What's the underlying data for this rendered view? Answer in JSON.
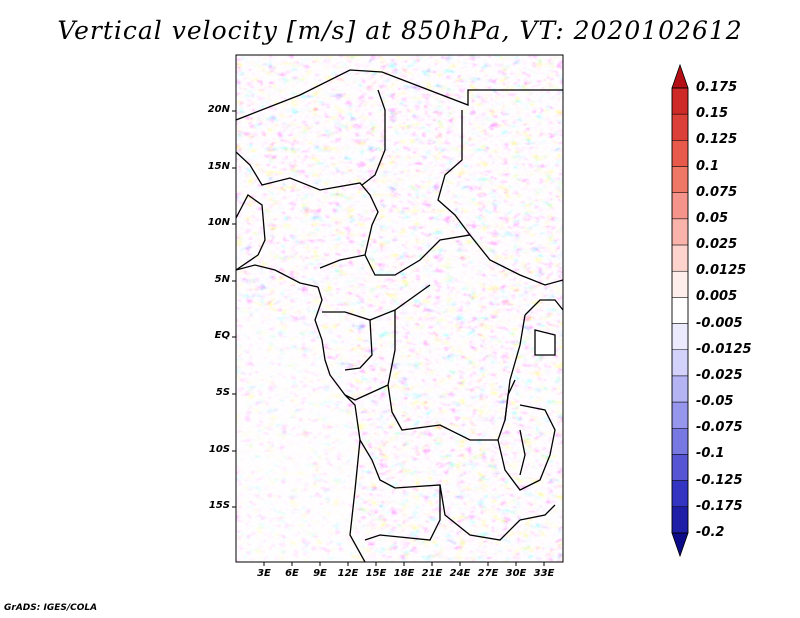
{
  "title": "Vertical velocity [m/s] at 850hPa, VT: 2020102612",
  "credit": "GrADS: IGES/COLA",
  "map": {
    "variable": "Vertical velocity",
    "units": "m/s",
    "level": "850hPa",
    "valid_time": "2020102612",
    "lon_labels": [
      "3E",
      "6E",
      "9E",
      "12E",
      "15E",
      "18E",
      "21E",
      "24E",
      "27E",
      "30E",
      "33E"
    ],
    "lat_labels": [
      "20N",
      "15N",
      "10N",
      "5N",
      "EQ",
      "5S",
      "10S",
      "15S"
    ]
  },
  "colorbar": {
    "labels": [
      "0.175",
      "0.15",
      "0.125",
      "0.1",
      "0.075",
      "0.05",
      "0.025",
      "0.0125",
      "0.005",
      "-0.005",
      "-0.0125",
      "-0.025",
      "-0.05",
      "-0.075",
      "-0.1",
      "-0.125",
      "-0.175",
      "-0.2"
    ],
    "colors": [
      "#b40f14",
      "#cd2a28",
      "#dc4038",
      "#e85a4c",
      "#ef7766",
      "#f5948a",
      "#f9b3ab",
      "#fcd3cd",
      "#feeeeb",
      "#ffffff",
      "#ebebfd",
      "#d2d2fa",
      "#b4b4f4",
      "#9696ec",
      "#7878e2",
      "#5656d4",
      "#3434c2",
      "#1e1ea6",
      "#0c0c88"
    ]
  }
}
